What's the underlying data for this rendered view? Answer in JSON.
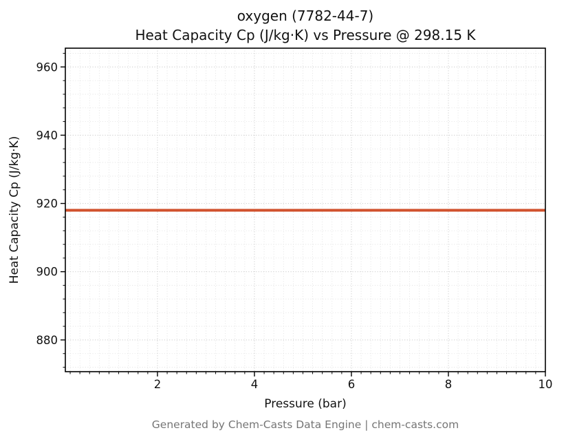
{
  "titles": {
    "line1": "oxygen (7782-44-7)",
    "line2": "Heat Capacity Cp (J/kg·K) vs Pressure @ 298.15 K"
  },
  "footer": "Generated by Chem-Casts Data Engine | chem-casts.com",
  "chart_data": {
    "type": "line",
    "title": "oxygen (7782-44-7) — Heat Capacity Cp (J/kg·K) vs Pressure @ 298.15 K",
    "xlabel": "Pressure (bar)",
    "ylabel": "Heat Capacity Cp (J/kg·K)",
    "xlim": [
      0.1,
      10
    ],
    "ylim": [
      870.7,
      965.5
    ],
    "x_ticks": [
      2,
      4,
      6,
      8,
      10
    ],
    "y_ticks": [
      880,
      900,
      920,
      940,
      960
    ],
    "x_minor_step": 0.2,
    "y_minor_step": 4,
    "grid": true,
    "grid_style": "dotted",
    "series": [
      {
        "name": "heat-capacity-cp",
        "color": "#d1512d",
        "linewidth": 4,
        "x": [
          0.1,
          1,
          2,
          3,
          4,
          5,
          6,
          7,
          8,
          9,
          10
        ],
        "y": [
          918,
          918,
          918,
          918,
          918,
          918,
          918,
          918,
          918,
          918,
          918
        ]
      }
    ]
  }
}
